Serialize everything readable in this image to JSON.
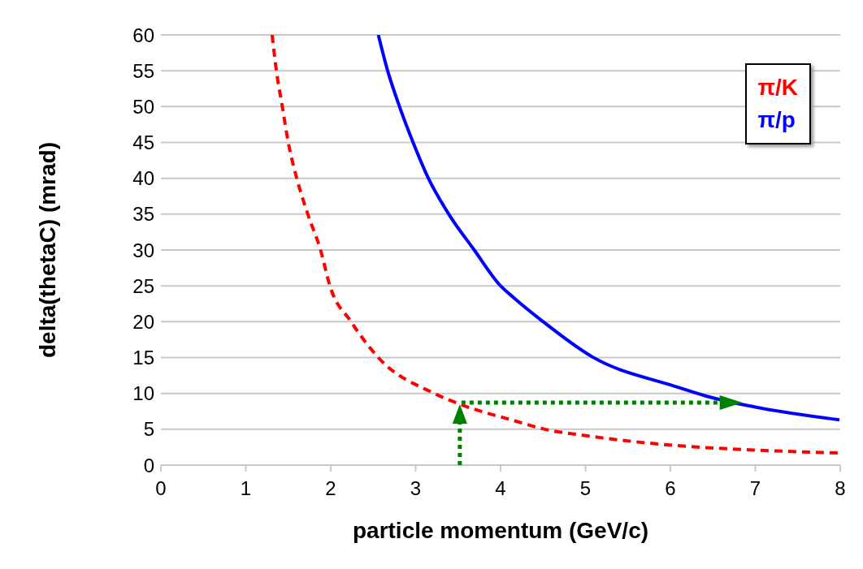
{
  "chart_data": {
    "type": "line",
    "xlabel": "particle momentum (GeV/c)",
    "ylabel": "delta(thetaC) (mrad)",
    "xlim": [
      0,
      8
    ],
    "xticks": [
      0,
      1,
      2,
      3,
      4,
      5,
      6,
      7,
      8
    ],
    "ylim": [
      0,
      60
    ],
    "yticks": [
      0,
      5,
      10,
      15,
      20,
      25,
      30,
      35,
      40,
      45,
      50,
      55,
      60
    ],
    "grid": "y",
    "legend": "top right",
    "marker": "none",
    "series": [
      {
        "name": "π/K",
        "color": "#ff0000",
        "line_style": "dashed",
        "x": [
          1.31,
          1.36,
          1.43,
          1.5,
          1.6,
          1.73,
          1.88,
          1.99,
          2.24,
          2.56,
          3.22,
          3.52,
          4.16,
          4.52,
          5.01,
          5.99,
          7.0,
          7.97
        ],
        "values": [
          60,
          55,
          50,
          45,
          40,
          35,
          30,
          25,
          20,
          15,
          10,
          8.5,
          6.2,
          5,
          4.1,
          2.8,
          2.1,
          1.7
        ]
      },
      {
        "name": "π/p",
        "color": "#0000ff",
        "line_style": "solid",
        "x": [
          2.56,
          2.67,
          2.81,
          2.97,
          3.15,
          3.39,
          3.69,
          4.0,
          4.16,
          4.48,
          5.08,
          6.05,
          6.43,
          7.0,
          7.99
        ],
        "values": [
          60,
          55,
          50,
          45,
          40,
          35,
          30,
          25,
          23.3,
          20.2,
          15.1,
          11,
          9.6,
          8.1,
          6.3
        ]
      }
    ]
  }
}
